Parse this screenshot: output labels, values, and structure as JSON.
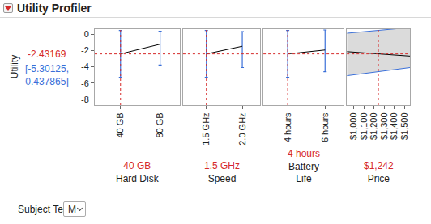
{
  "header": {
    "title": "Utility Profiler"
  },
  "chart_data": {
    "type": "line",
    "ylabel": "Utility",
    "ylim": [
      -8.7,
      0.6
    ],
    "yticks": [
      -8,
      -6,
      -4,
      -2,
      0
    ],
    "current_value": -2.43169,
    "ci_label": "[-5.30125, 0.437865]",
    "panels": [
      {
        "factor": "Hard Disk",
        "categories": [
          "40 GB",
          "80 GB"
        ],
        "values": [
          -2.43169,
          -1.25
        ],
        "lower": [
          -5.30125,
          -3.8
        ],
        "upper": [
          0.437865,
          0.35
        ],
        "current": "40 GB"
      },
      {
        "factor": "Speed",
        "categories": [
          "1.5 GHz",
          "2.0 GHz"
        ],
        "values": [
          -2.43169,
          -1.5
        ],
        "lower": [
          -5.30125,
          -4.1
        ],
        "upper": [
          0.437865,
          0.3
        ],
        "current": "1.5 GHz"
      },
      {
        "factor": "Battery Life",
        "categories": [
          "4 hours",
          "6 hours"
        ],
        "values": [
          -2.43169,
          -1.95
        ],
        "lower": [
          -5.30125,
          -4.6
        ],
        "upper": [
          0.437865,
          0.5
        ],
        "current": "4 hours"
      },
      {
        "factor": "Price",
        "x": [
          930,
          1555
        ],
        "xlim": [
          930,
          1555
        ],
        "xticks": [
          {
            "value": 1000,
            "label": "$1,000"
          },
          {
            "value": 1100,
            "label": "$1,100"
          },
          {
            "value": 1200,
            "label": "$1,200"
          },
          {
            "value": 1300,
            "label": "$1,300"
          },
          {
            "value": 1400,
            "label": "$1,400"
          },
          {
            "value": 1500,
            "label": "$1,500"
          }
        ],
        "values": [
          -2.15,
          -2.7
        ],
        "lower": [
          -5.1,
          -4.1
        ],
        "upper": [
          0.1,
          0.8
        ],
        "current": {
          "value": 1242,
          "label": "$1,242"
        }
      }
    ]
  },
  "controls": {
    "subject_terms": {
      "label": "Subject Terms:",
      "value": "M"
    }
  }
}
